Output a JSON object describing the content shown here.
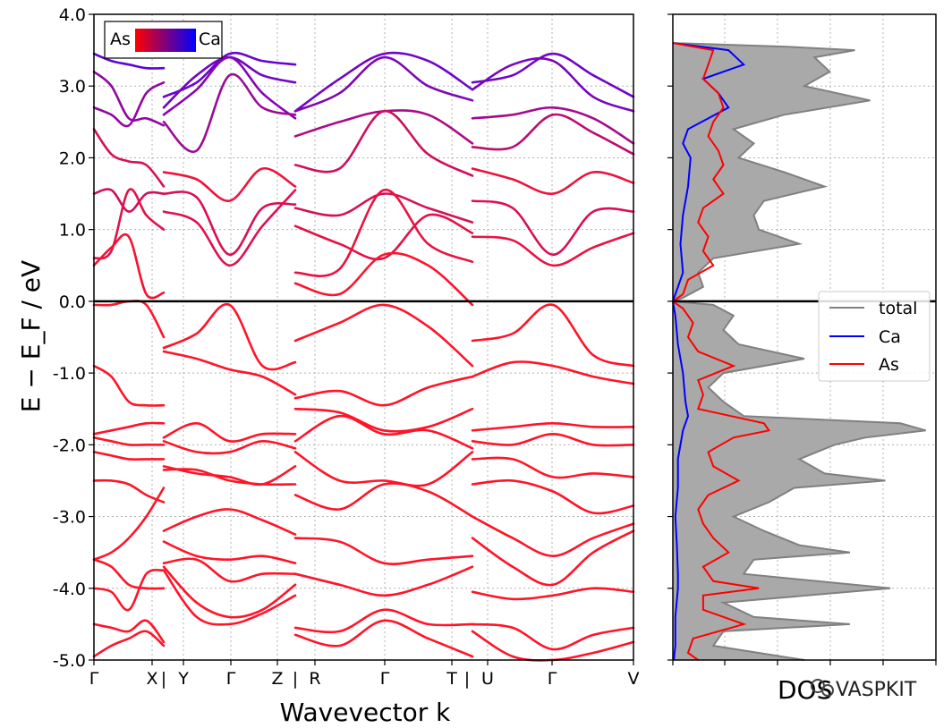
{
  "chart_data": [
    {
      "type": "line",
      "subtype": "band-structure",
      "xlabel": "Wavevector k",
      "ylabel": "E − E_F / eV",
      "ylim": [
        -5.0,
        4.0
      ],
      "yticks": [
        "4.0",
        "3.0",
        "2.0",
        "1.0",
        "0.0",
        "-1.0",
        "-2.0",
        "-3.0",
        "-4.0",
        "-5.0"
      ],
      "kpoint_labels": [
        "Γ",
        "X",
        "Y",
        "Γ",
        "Z",
        "R",
        "Γ",
        "T",
        "U",
        "Γ",
        "V"
      ],
      "kpoint_separators": [
        "|",
        "|",
        "|",
        "|"
      ],
      "grid": true,
      "fermi_level": 0.0,
      "colorbar": {
        "left_label": "As",
        "right_label": "Ca",
        "left_color": "#ff0000",
        "right_color": "#0000ff",
        "position": "top-left"
      },
      "segments": [
        {
          "name": "Γ-X",
          "x": [
            0,
            0.25,
            0.5,
            0.75,
            1
          ],
          "bands": [
            [
              3.45,
              3.35,
              3.3,
              3.25,
              3.25
            ],
            [
              3.2,
              3.0,
              2.55,
              2.55,
              2.45
            ],
            [
              2.7,
              2.6,
              2.45,
              2.9,
              3.05
            ],
            [
              2.4,
              2.05,
              1.95,
              1.9,
              1.6
            ],
            [
              1.5,
              1.55,
              1.25,
              1.5,
              1.5
            ],
            [
              0.6,
              0.7,
              1.55,
              1.2,
              1.0
            ],
            [
              0.5,
              0.75,
              0.9,
              0.1,
              0.12
            ],
            [
              -0.05,
              -0.05,
              0.0,
              -0.05,
              -0.5
            ],
            [
              -0.9,
              -1.05,
              -1.4,
              -1.45,
              -1.45
            ],
            [
              -1.85,
              -1.8,
              -1.75,
              -1.7,
              -1.7
            ],
            [
              -1.9,
              -1.95,
              -2.0,
              -2.0,
              -2.0
            ],
            [
              -2.1,
              -2.15,
              -2.2,
              -2.2,
              -2.2
            ],
            [
              -2.5,
              -2.5,
              -2.55,
              -2.7,
              -2.8
            ],
            [
              -3.6,
              -3.5,
              -3.3,
              -3.0,
              -2.6
            ],
            [
              -3.6,
              -3.7,
              -3.95,
              -4.0,
              -4.0
            ],
            [
              -4.0,
              -4.05,
              -4.3,
              -3.8,
              -3.75
            ],
            [
              -4.5,
              -4.55,
              -4.6,
              -4.45,
              -4.75
            ],
            [
              -4.95,
              -4.8,
              -4.7,
              -4.6,
              -4.8
            ]
          ]
        },
        {
          "name": "Y-Γ-Z",
          "x": [
            0,
            0.25,
            0.5,
            0.75,
            1
          ],
          "bands": [
            [
              2.85,
              3.05,
              3.45,
              3.35,
              3.3
            ],
            [
              2.7,
              3.15,
              3.4,
              3.15,
              3.05
            ],
            [
              2.6,
              2.95,
              3.4,
              2.9,
              2.55
            ],
            [
              2.5,
              2.1,
              3.15,
              2.7,
              2.6
            ],
            [
              1.8,
              1.7,
              1.4,
              1.85,
              1.6
            ],
            [
              1.5,
              1.45,
              0.65,
              1.3,
              1.35
            ],
            [
              1.25,
              1.1,
              0.5,
              1.05,
              1.55
            ],
            [
              -0.65,
              -0.45,
              -0.05,
              -0.9,
              -0.85
            ],
            [
              -0.7,
              -0.8,
              -0.95,
              -1.05,
              -1.3
            ],
            [
              -1.9,
              -1.7,
              -1.95,
              -1.85,
              -1.85
            ],
            [
              -1.95,
              -2.1,
              -2.1,
              -1.95,
              -2.05
            ],
            [
              -2.3,
              -2.4,
              -2.45,
              -2.55,
              -2.3
            ],
            [
              -2.35,
              -2.35,
              -2.5,
              -2.55,
              -2.55
            ],
            [
              -3.2,
              -3.0,
              -2.9,
              -3.05,
              -3.25
            ],
            [
              -3.35,
              -3.55,
              -3.6,
              -3.55,
              -3.65
            ],
            [
              -3.65,
              -3.6,
              -3.9,
              -3.8,
              -3.8
            ],
            [
              -3.7,
              -4.2,
              -4.4,
              -4.3,
              -3.95
            ],
            [
              -3.75,
              -4.4,
              -4.5,
              -4.35,
              -4.1
            ]
          ]
        },
        {
          "name": "R-Γ-T",
          "x": [
            0,
            0.25,
            0.5,
            0.75,
            1
          ],
          "bands": [
            [
              2.65,
              3.1,
              3.45,
              3.35,
              2.95
            ],
            [
              2.65,
              2.9,
              3.4,
              3.0,
              2.8
            ],
            [
              2.3,
              2.5,
              2.65,
              2.6,
              2.2
            ],
            [
              1.9,
              1.85,
              2.65,
              2.05,
              1.75
            ],
            [
              1.3,
              1.2,
              1.5,
              1.3,
              1.1
            ],
            [
              1.05,
              0.8,
              0.6,
              1.2,
              0.95
            ],
            [
              0.4,
              0.45,
              1.55,
              0.8,
              0.55
            ],
            [
              0.25,
              0.1,
              0.65,
              0.5,
              -0.05
            ],
            [
              -0.55,
              -0.3,
              -0.05,
              -0.35,
              -0.9
            ],
            [
              -1.35,
              -1.25,
              -1.45,
              -1.2,
              -1.05
            ],
            [
              -1.5,
              -1.55,
              -1.8,
              -1.75,
              -1.5
            ],
            [
              -1.95,
              -1.6,
              -1.85,
              -1.8,
              -2.05
            ],
            [
              -2.1,
              -2.5,
              -2.5,
              -2.55,
              -2.1
            ],
            [
              -2.7,
              -2.9,
              -2.55,
              -2.65,
              -3.0
            ],
            [
              -3.3,
              -3.35,
              -3.65,
              -3.6,
              -3.55
            ],
            [
              -3.8,
              -3.95,
              -4.1,
              -3.95,
              -3.7
            ],
            [
              -4.55,
              -4.6,
              -4.3,
              -4.5,
              -4.5
            ],
            [
              -4.65,
              -4.8,
              -4.45,
              -4.7,
              -4.95
            ]
          ]
        },
        {
          "name": "U-Γ-V",
          "x": [
            0,
            0.25,
            0.5,
            0.75,
            1
          ],
          "bands": [
            [
              3.05,
              3.15,
              3.45,
              3.15,
              2.85
            ],
            [
              2.95,
              3.3,
              3.35,
              2.85,
              2.65
            ],
            [
              2.55,
              2.6,
              2.7,
              2.55,
              2.2
            ],
            [
              2.15,
              2.15,
              2.6,
              2.35,
              2.05
            ],
            [
              1.85,
              1.7,
              1.5,
              1.8,
              1.65
            ],
            [
              1.4,
              1.3,
              0.65,
              1.25,
              1.25
            ],
            [
              0.9,
              0.85,
              0.5,
              0.75,
              0.95
            ],
            [
              -0.55,
              -0.45,
              -0.05,
              -0.75,
              -0.9
            ],
            [
              -1.05,
              -0.85,
              -0.9,
              -1.05,
              -1.15
            ],
            [
              -1.8,
              -1.75,
              -1.7,
              -1.75,
              -1.75
            ],
            [
              -1.95,
              -2.0,
              -1.85,
              -2.0,
              -2.0
            ],
            [
              -2.2,
              -2.2,
              -2.45,
              -2.4,
              -2.45
            ],
            [
              -2.55,
              -2.5,
              -2.65,
              -2.95,
              -2.85
            ],
            [
              -3.0,
              -3.3,
              -3.55,
              -3.3,
              -3.1
            ],
            [
              -3.3,
              -3.7,
              -3.95,
              -3.5,
              -3.2
            ],
            [
              -4.05,
              -4.15,
              -4.1,
              -4.0,
              -4.05
            ],
            [
              -4.5,
              -4.55,
              -4.85,
              -4.65,
              -4.55
            ],
            [
              -4.6,
              -4.95,
              -5.0,
              -4.9,
              -4.75
            ]
          ]
        }
      ]
    },
    {
      "type": "area",
      "subtype": "density-of-states",
      "xlabel": "DOS",
      "orientation": "horizontal",
      "grid": true,
      "legend_position": "right",
      "series": [
        {
          "name": "total",
          "color": "#808080",
          "fill": "#a9a9a9",
          "energy": [
            3.6,
            3.55,
            3.5,
            3.4,
            3.2,
            3.0,
            2.8,
            2.6,
            2.4,
            2.2,
            2.0,
            1.8,
            1.6,
            1.4,
            1.2,
            1.0,
            0.8,
            0.6,
            0.4,
            0.2,
            0.05,
            0.0,
            -0.05,
            -0.2,
            -0.4,
            -0.6,
            -0.8,
            -1.0,
            -1.2,
            -1.4,
            -1.6,
            -1.7,
            -1.8,
            -1.9,
            -2.0,
            -2.2,
            -2.4,
            -2.5,
            -2.6,
            -2.8,
            -3.0,
            -3.2,
            -3.4,
            -3.5,
            -3.6,
            -3.8,
            -4.0,
            -4.2,
            -4.4,
            -4.5,
            -4.6,
            -4.8,
            -5.0
          ],
          "dos": [
            0.0,
            2.2,
            3.6,
            2.8,
            3.1,
            2.6,
            3.9,
            2.2,
            1.2,
            1.6,
            1.3,
            2.2,
            3.0,
            1.8,
            1.6,
            1.7,
            2.5,
            0.8,
            0.5,
            0.6,
            0.2,
            0.0,
            0.8,
            1.2,
            1.0,
            1.3,
            2.6,
            1.0,
            0.7,
            1.0,
            1.4,
            4.5,
            5.0,
            3.8,
            3.2,
            2.5,
            3.0,
            4.2,
            2.4,
            1.9,
            1.2,
            1.8,
            2.5,
            3.5,
            1.6,
            1.4,
            4.3,
            1.0,
            1.6,
            3.5,
            1.0,
            0.8,
            2.6
          ]
        },
        {
          "name": "Ca",
          "color": "#0000ff",
          "energy": [
            3.6,
            3.5,
            3.3,
            3.1,
            2.9,
            2.7,
            2.4,
            2.2,
            2.0,
            1.6,
            1.2,
            0.8,
            0.4,
            0.2,
            0.0,
            -0.2,
            -0.6,
            -1.0,
            -1.4,
            -1.6,
            -1.8,
            -2.0,
            -2.2,
            -2.6,
            -3.0,
            -3.4,
            -3.8,
            -4.0,
            -4.4,
            -4.8,
            -5.0
          ],
          "dos": [
            0.0,
            1.1,
            1.4,
            0.6,
            0.9,
            1.1,
            0.3,
            0.2,
            0.35,
            0.3,
            0.2,
            0.15,
            0.2,
            0.1,
            0.0,
            0.05,
            0.1,
            0.2,
            0.25,
            0.3,
            0.2,
            0.15,
            0.1,
            0.1,
            0.05,
            0.08,
            0.1,
            0.1,
            0.05,
            0.05,
            0.02
          ]
        },
        {
          "name": "As",
          "color": "#ff0000",
          "energy": [
            3.6,
            3.5,
            3.3,
            3.1,
            2.9,
            2.7,
            2.5,
            2.3,
            2.1,
            1.9,
            1.7,
            1.5,
            1.3,
            1.1,
            0.9,
            0.7,
            0.5,
            0.3,
            0.1,
            0.0,
            -0.1,
            -0.3,
            -0.5,
            -0.7,
            -0.9,
            -1.1,
            -1.3,
            -1.5,
            -1.7,
            -1.8,
            -1.9,
            -2.1,
            -2.3,
            -2.5,
            -2.7,
            -2.9,
            -3.1,
            -3.3,
            -3.5,
            -3.7,
            -3.9,
            -4.0,
            -4.1,
            -4.3,
            -4.5,
            -4.7,
            -4.9,
            -5.0
          ],
          "dos": [
            0.0,
            0.8,
            0.7,
            0.6,
            0.9,
            1.0,
            0.8,
            0.7,
            0.9,
            1.0,
            0.8,
            1.0,
            0.6,
            0.5,
            0.7,
            0.6,
            0.8,
            0.3,
            0.2,
            0.0,
            0.2,
            0.4,
            0.3,
            0.5,
            1.2,
            0.5,
            0.6,
            0.5,
            1.8,
            1.9,
            1.2,
            0.7,
            0.8,
            1.3,
            0.7,
            0.5,
            0.6,
            0.8,
            1.1,
            0.6,
            0.8,
            1.7,
            0.6,
            0.6,
            1.4,
            0.4,
            0.3,
            0.5
          ]
        }
      ]
    }
  ],
  "watermark": "VASPKIT"
}
